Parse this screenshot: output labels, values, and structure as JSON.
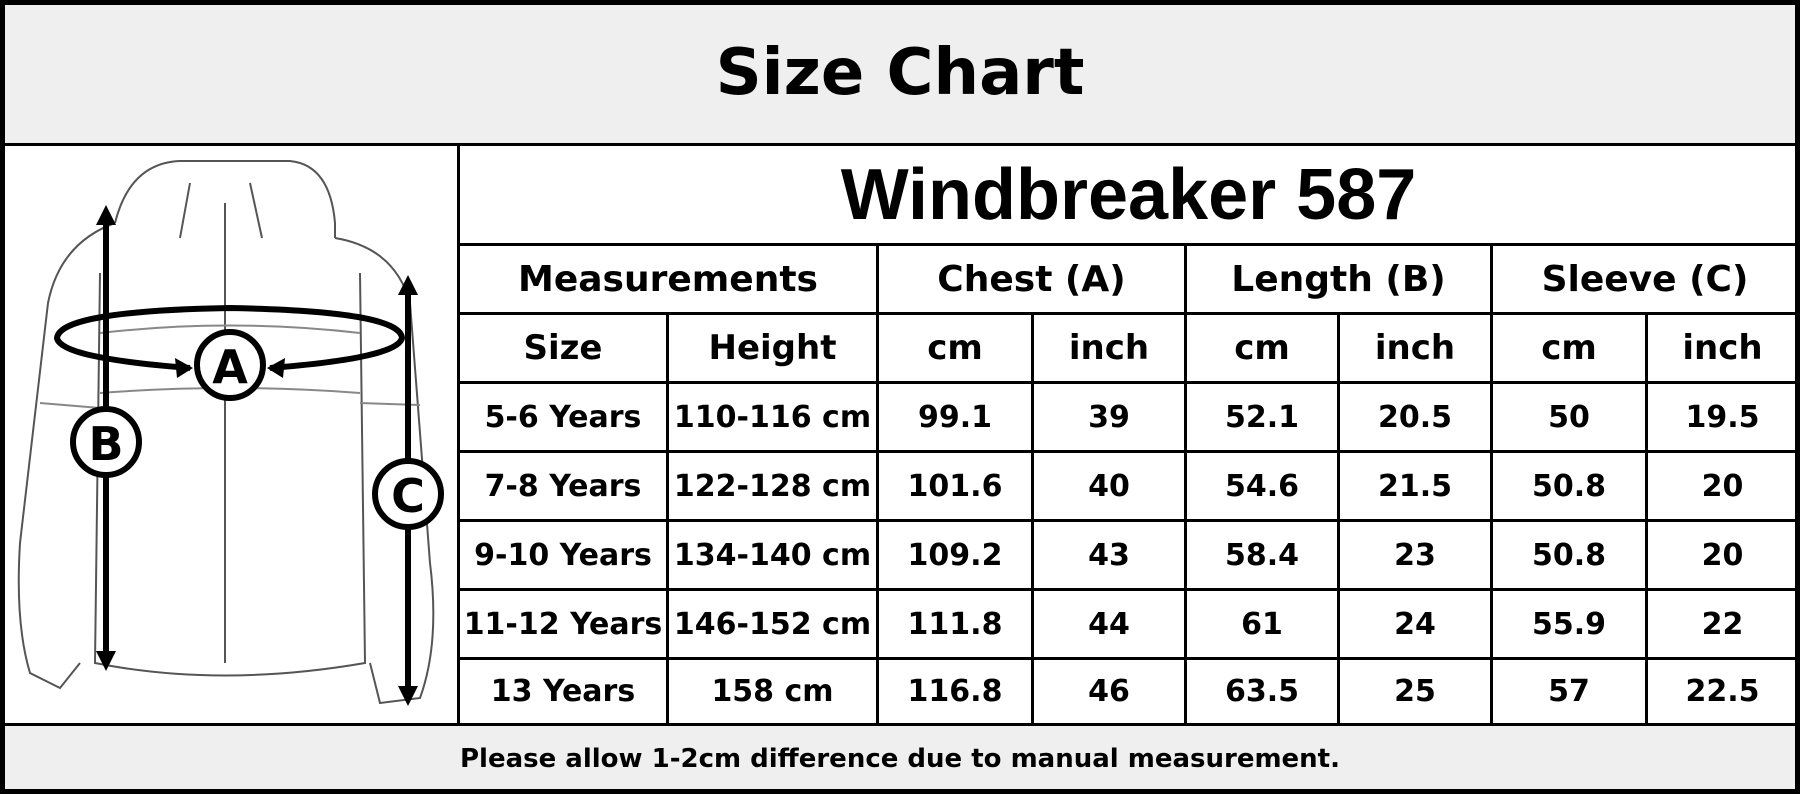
{
  "title": "Size Chart",
  "diagram": {
    "labels": [
      "A",
      "B",
      "C"
    ]
  },
  "table": {
    "title": "Windbreaker 587",
    "groups": [
      "Measurements",
      "Chest (A)",
      "Length (B)",
      "Sleeve (C)"
    ],
    "subheaders": [
      "Size",
      "Height",
      "cm",
      "inch",
      "cm",
      "inch",
      "cm",
      "inch"
    ],
    "rows": [
      [
        "5-6 Years",
        "110-116 cm",
        "99.1",
        "39",
        "52.1",
        "20.5",
        "50",
        "19.5"
      ],
      [
        "7-8 Years",
        "122-128 cm",
        "101.6",
        "40",
        "54.6",
        "21.5",
        "50.8",
        "20"
      ],
      [
        "9-10 Years",
        "134-140 cm",
        "109.2",
        "43",
        "58.4",
        "23",
        "50.8",
        "20"
      ],
      [
        "11-12 Years",
        "146-152 cm",
        "111.8",
        "44",
        "61",
        "24",
        "55.9",
        "22"
      ],
      [
        "13 Years",
        "158 cm",
        "116.8",
        "46",
        "63.5",
        "25",
        "57",
        "22.5"
      ]
    ]
  },
  "footer": "Please allow 1-2cm difference due to manual measurement."
}
